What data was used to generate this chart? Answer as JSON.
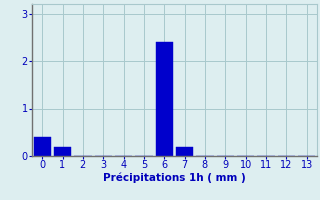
{
  "categories": [
    0,
    1,
    2,
    3,
    4,
    5,
    6,
    7,
    8,
    9,
    10,
    11,
    12,
    13
  ],
  "values": [
    0.4,
    0.2,
    0,
    0,
    0,
    0,
    2.4,
    0.2,
    0,
    0,
    0,
    0,
    0,
    0
  ],
  "bar_color": "#0000CC",
  "bar_edge_color": "#0000CC",
  "background_color": "#DDEEF0",
  "grid_color": "#A8C8CC",
  "text_color": "#0000BB",
  "xlabel": "Précipitations 1h ( mm )",
  "xlim": [
    -0.5,
    13.5
  ],
  "ylim": [
    0,
    3.2
  ],
  "yticks": [
    0,
    1,
    2,
    3
  ],
  "xticks": [
    0,
    1,
    2,
    3,
    4,
    5,
    6,
    7,
    8,
    9,
    10,
    11,
    12,
    13
  ],
  "xlabel_fontsize": 7.5,
  "tick_fontsize": 7,
  "bar_width": 0.85
}
